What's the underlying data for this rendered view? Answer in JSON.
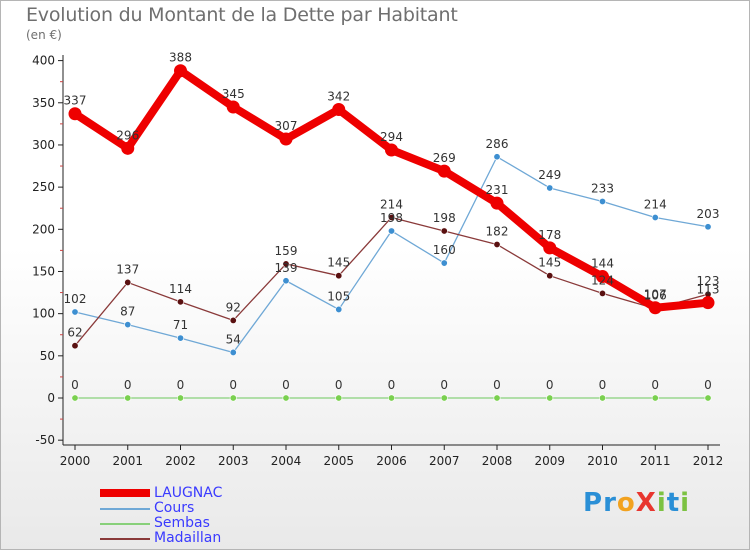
{
  "title": "Evolution du Montant de la Dette par Habitant",
  "subtitle": "(en €)",
  "logo": {
    "text": "Proxiti",
    "letters": [
      {
        "ch": "P",
        "color": "#2a8fd6"
      },
      {
        "ch": "r",
        "color": "#2a8fd6"
      },
      {
        "ch": "o",
        "color": "#f2a21f"
      },
      {
        "ch": "X",
        "color": "#e8362f"
      },
      {
        "ch": "i",
        "color": "#7cc242"
      },
      {
        "ch": "t",
        "color": "#2a8fd6"
      },
      {
        "ch": "i",
        "color": "#7cc242"
      }
    ]
  },
  "chart_data": {
    "type": "line",
    "title": "Evolution du Montant de la Dette par Habitant",
    "subtitle": "(en €)",
    "xlabel": "",
    "ylabel": "",
    "ylim": [
      -50,
      400
    ],
    "y_ticks": [
      -50,
      0,
      50,
      100,
      150,
      200,
      250,
      300,
      350,
      400
    ],
    "grid": false,
    "legend_position": "bottom-left",
    "categories": [
      "2000",
      "2001",
      "2002",
      "2003",
      "2004",
      "2005",
      "2006",
      "2007",
      "2008",
      "2009",
      "2010",
      "2011",
      "2012"
    ],
    "series": [
      {
        "name": "LAUGNAC",
        "color": "#ee0000",
        "marker": "#ee0000",
        "width": 8,
        "marker_r": 6.5,
        "values": [
          337,
          296,
          388,
          345,
          307,
          342,
          294,
          269,
          231,
          178,
          144,
          107,
          113
        ]
      },
      {
        "name": "Cours",
        "color": "#6fa8d6",
        "marker": "#3d8fd1",
        "width": 1.3,
        "marker_r": 3.2,
        "values": [
          102,
          87,
          71,
          54,
          139,
          105,
          198,
          160,
          286,
          249,
          233,
          214,
          203
        ]
      },
      {
        "name": "Sembas",
        "color": "#88d07a",
        "marker": "#7ad04f",
        "width": 1.3,
        "marker_r": 3.2,
        "values": [
          0,
          0,
          0,
          0,
          0,
          0,
          0,
          0,
          0,
          0,
          0,
          0,
          0
        ]
      },
      {
        "name": "Madaillan",
        "color": "#8a3a3a",
        "marker": "#5a1010",
        "width": 1.3,
        "marker_r": 3.2,
        "values": [
          62,
          137,
          114,
          92,
          159,
          145,
          214,
          198,
          182,
          145,
          124,
          106,
          123
        ]
      }
    ],
    "data_labels": [
      {
        "series": 0,
        "text": [
          "337",
          "296",
          "388",
          "345",
          "307",
          "342",
          "294",
          "269",
          "231",
          "178",
          "144",
          "107",
          "113"
        ]
      },
      {
        "series": 1,
        "text": [
          "102",
          "87",
          "71",
          "54",
          "139",
          "105",
          "198",
          "160",
          "286",
          "249",
          "233",
          "214",
          "203"
        ]
      },
      {
        "series": 2,
        "text": [
          "0",
          "0",
          "0",
          "0",
          "0",
          "0",
          "0",
          "0",
          "0",
          "0",
          "0",
          "0",
          "0"
        ]
      },
      {
        "series": 3,
        "text": [
          "62",
          "137",
          "114",
          "92",
          "159",
          "145",
          "214",
          "198",
          "182",
          "145",
          "124",
          "106",
          "123"
        ]
      }
    ]
  }
}
